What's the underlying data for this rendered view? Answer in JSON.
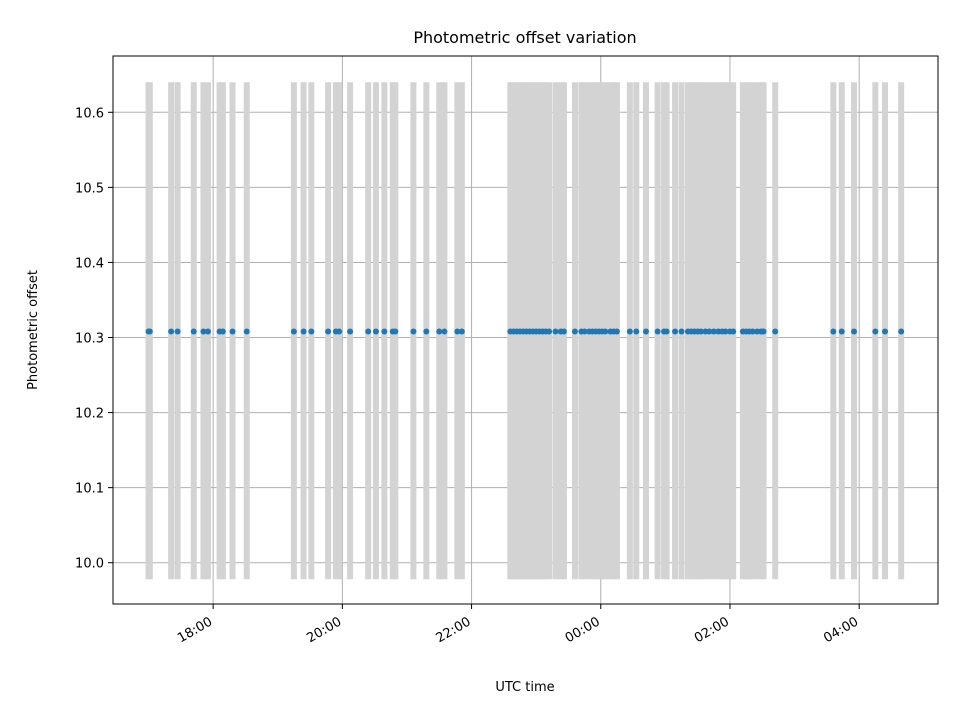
{
  "chart_data": {
    "type": "scatter",
    "title": "Photometric offset variation",
    "xlabel": "UTC time",
    "ylabel": "Photometric offset",
    "x_axis": "time",
    "x_ticks": [
      "18:00",
      "20:00",
      "22:00",
      "00:00",
      "02:00",
      "04:00"
    ],
    "x_tick_hours": [
      18,
      20,
      22,
      24,
      26,
      28
    ],
    "xlim_hours": [
      16.45,
      29.22
    ],
    "y_ticks": [
      10.0,
      10.1,
      10.2,
      10.3,
      10.4,
      10.5,
      10.6
    ],
    "ylim": [
      9.945,
      10.675
    ],
    "grid": true,
    "colors": {
      "points": "#1f77b4",
      "error_bars": "#d3d3d3",
      "grid": "#b0b0b0"
    },
    "series": [
      {
        "marker": "dot",
        "y_value": 10.308,
        "error_bar_range": [
          9.978,
          10.64
        ],
        "x_hours": [
          17.0,
          17.02,
          17.35,
          17.45,
          17.7,
          17.85,
          17.92,
          18.1,
          18.15,
          18.3,
          18.52,
          19.25,
          19.4,
          19.52,
          19.78,
          19.9,
          19.95,
          20.12,
          20.4,
          20.52,
          20.65,
          20.78,
          20.82,
          21.1,
          21.3,
          21.5,
          21.58,
          21.78,
          21.85,
          22.6,
          22.65,
          22.7,
          22.75,
          22.8,
          22.85,
          22.9,
          22.95,
          23.0,
          23.05,
          23.1,
          23.15,
          23.2,
          23.3,
          23.38,
          23.43,
          23.6,
          23.7,
          23.75,
          23.82,
          23.87,
          23.92,
          23.97,
          24.02,
          24.07,
          24.15,
          24.2,
          24.25,
          24.45,
          24.55,
          24.7,
          24.88,
          24.98,
          25.02,
          25.15,
          25.25,
          25.35,
          25.4,
          25.45,
          25.5,
          25.55,
          25.62,
          25.68,
          25.75,
          25.82,
          25.88,
          25.93,
          26.0,
          26.05,
          26.2,
          26.25,
          26.3,
          26.35,
          26.42,
          26.48,
          26.52,
          26.7,
          27.6,
          27.73,
          27.92,
          28.25,
          28.4,
          28.65
        ]
      }
    ]
  }
}
